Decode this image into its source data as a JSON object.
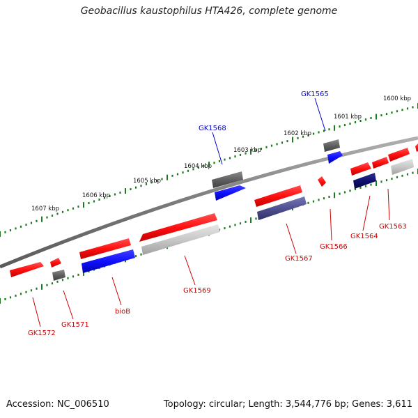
{
  "title": "Geobacillus kaustophilus HTA426, complete genome",
  "accession_text": "Accession: NC_006510",
  "topology_text": "Topology: circular; Length: 3,544,776 bp; Genes: 3,611",
  "colors": {
    "backbone": "#808080",
    "ticks": "#1f7a1f",
    "red_feature": "#ff1010",
    "blue_feature": "#1010ff",
    "gray_feature": "#606060",
    "lightgray_feature": "#c0c0c0",
    "navy_feature": "#101070",
    "slate_feature": "#505090",
    "label_red": "#cc0000",
    "label_blue": "#0000cc"
  },
  "scale_labels": [
    "1600 kbp",
    "1601 kbp",
    "1602 kbp",
    "1603 kbp",
    "1604 kbp",
    "1605 kbp",
    "1606 kbp",
    "1607 kbp"
  ],
  "gene_labels": [
    {
      "name": "GK1565",
      "strand": "top",
      "color": "label_blue"
    },
    {
      "name": "GK1568",
      "strand": "top",
      "color": "label_blue"
    },
    {
      "name": "GK1563",
      "strand": "bottom",
      "color": "label_red"
    },
    {
      "name": "GK1564",
      "strand": "bottom",
      "color": "label_red"
    },
    {
      "name": "GK1566",
      "strand": "bottom",
      "color": "label_red"
    },
    {
      "name": "GK1567",
      "strand": "bottom",
      "color": "label_red"
    },
    {
      "name": "GK1569",
      "strand": "bottom",
      "color": "label_red"
    },
    {
      "name": "bioB",
      "strand": "bottom",
      "color": "label_red"
    },
    {
      "name": "GK1571",
      "strand": "bottom",
      "color": "label_red"
    },
    {
      "name": "GK1572",
      "strand": "bottom",
      "color": "label_red"
    }
  ]
}
